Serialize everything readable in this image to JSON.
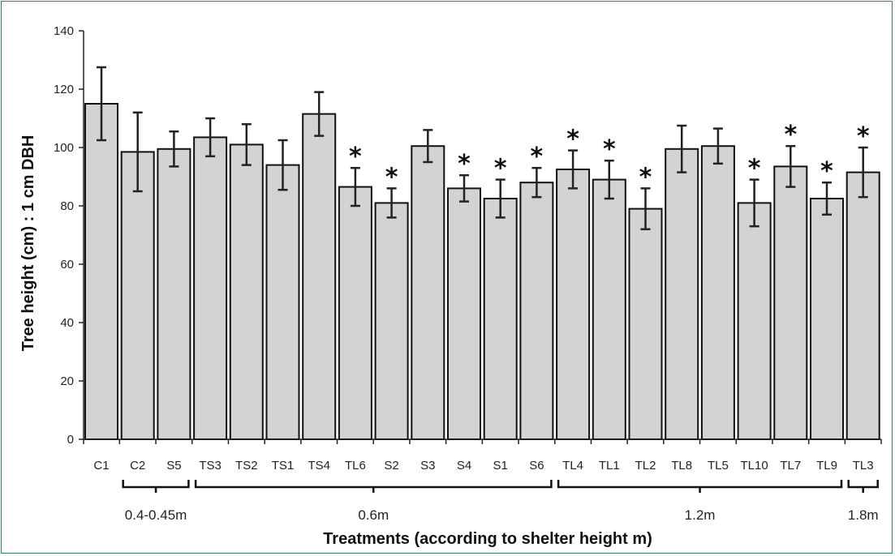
{
  "chart_data": {
    "type": "bar",
    "title": "",
    "xlabel": "Treatments (according to shelter height m)",
    "ylabel": "Tree height (cm) : 1 cm DBH",
    "ylim": [
      0,
      140
    ],
    "yticks": [
      "0",
      "20",
      "40",
      "60",
      "80",
      "100",
      "120",
      "140"
    ],
    "grid": false,
    "bar_color": "#d3d3d3",
    "categories": [
      "C1",
      "C2",
      "S5",
      "TS3",
      "TS2",
      "TS1",
      "TS4",
      "TL6",
      "S2",
      "S3",
      "S4",
      "S1",
      "S6",
      "TL4",
      "TL1",
      "TL2",
      "TL8",
      "TL5",
      "TL10",
      "TL7",
      "TL9",
      "TL3"
    ],
    "values": [
      115,
      98.5,
      99.5,
      103.5,
      101,
      94,
      111.5,
      86.5,
      81,
      100.5,
      86,
      82.5,
      88,
      92.5,
      89,
      79,
      99.5,
      100.5,
      81,
      93.5,
      82.5,
      91.5
    ],
    "error": [
      12.5,
      13.5,
      6,
      6.5,
      7,
      8.5,
      7.5,
      6.5,
      5,
      5.5,
      4.5,
      6.5,
      5,
      6.5,
      6.5,
      7,
      8,
      6,
      8,
      7,
      5.5,
      8.5
    ],
    "significant": [
      false,
      false,
      false,
      false,
      false,
      false,
      false,
      true,
      true,
      false,
      true,
      true,
      true,
      true,
      true,
      true,
      false,
      false,
      true,
      true,
      true,
      true
    ],
    "significance_marker": "*",
    "groups": [
      {
        "label": "0.4-0.45m",
        "from": 1,
        "to": 2
      },
      {
        "label": "0.6m",
        "from": 3,
        "to": 12
      },
      {
        "label": "1.2m",
        "from": 13,
        "to": 20
      },
      {
        "label": "1.8m",
        "from": 21,
        "to": 21
      }
    ]
  }
}
